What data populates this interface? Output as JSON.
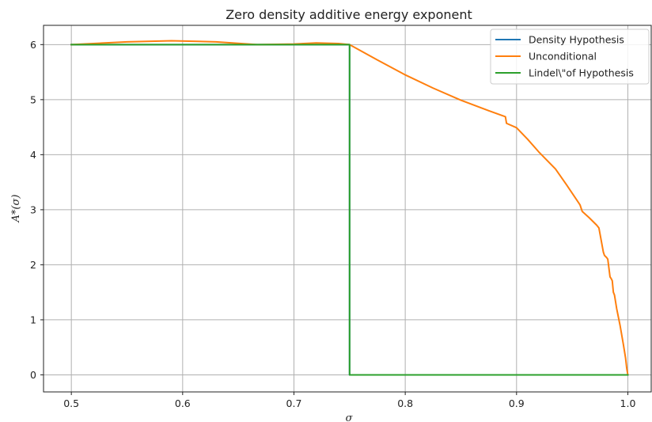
{
  "chart_data": {
    "type": "line",
    "title": "Zero density additive energy exponent",
    "xlabel": "σ",
    "ylabel": "A*(σ)",
    "xlim": [
      0.475,
      1.021
    ],
    "ylim": [
      -0.31,
      6.35
    ],
    "x_ticks": [
      0.5,
      0.6,
      0.7,
      0.8,
      0.9,
      1.0
    ],
    "x_tick_labels": [
      "0.5",
      "0.6",
      "0.7",
      "0.8",
      "0.9",
      "1.0"
    ],
    "y_ticks": [
      0,
      1,
      2,
      3,
      4,
      5,
      6
    ],
    "y_tick_labels": [
      "0",
      "1",
      "2",
      "3",
      "4",
      "5",
      "6"
    ],
    "grid": true,
    "legend_position": "top-right",
    "series": [
      {
        "name": "Density Hypothesis",
        "color": "#1f77b4",
        "x": [
          0.5,
          0.75,
          0.75,
          1.0
        ],
        "y": [
          6,
          6,
          0,
          0
        ]
      },
      {
        "name": "Unconditional",
        "color": "#ff7f0e",
        "x": [
          0.5,
          0.55,
          0.59,
          0.63,
          0.667,
          0.7,
          0.72,
          0.74,
          0.75,
          0.775,
          0.8,
          0.825,
          0.85,
          0.875,
          0.89,
          0.891,
          0.9,
          0.91,
          0.92,
          0.935,
          0.945,
          0.957,
          0.959,
          0.965,
          0.972,
          0.974,
          0.975,
          0.978,
          0.979,
          0.981,
          0.982,
          0.984,
          0.985,
          0.986,
          0.987,
          0.988,
          0.99,
          0.993,
          0.996,
          0.998,
          0.999,
          1.0
        ],
        "y": [
          6.0,
          6.05,
          6.07,
          6.05,
          6.0,
          6.01,
          6.03,
          6.02,
          6.0,
          5.72,
          5.45,
          5.21,
          4.99,
          4.8,
          4.69,
          4.57,
          4.49,
          4.28,
          4.05,
          3.74,
          3.45,
          3.09,
          2.97,
          2.86,
          2.72,
          2.67,
          2.56,
          2.23,
          2.17,
          2.13,
          2.1,
          1.78,
          1.75,
          1.71,
          1.5,
          1.45,
          1.2,
          0.9,
          0.55,
          0.3,
          0.12,
          0.0
        ]
      },
      {
        "name": "Lindel\\\"of Hypothesis",
        "color": "#2ca02c",
        "x": [
          0.5,
          0.75,
          0.75,
          1.0
        ],
        "y": [
          6,
          6,
          0,
          0
        ]
      }
    ]
  }
}
